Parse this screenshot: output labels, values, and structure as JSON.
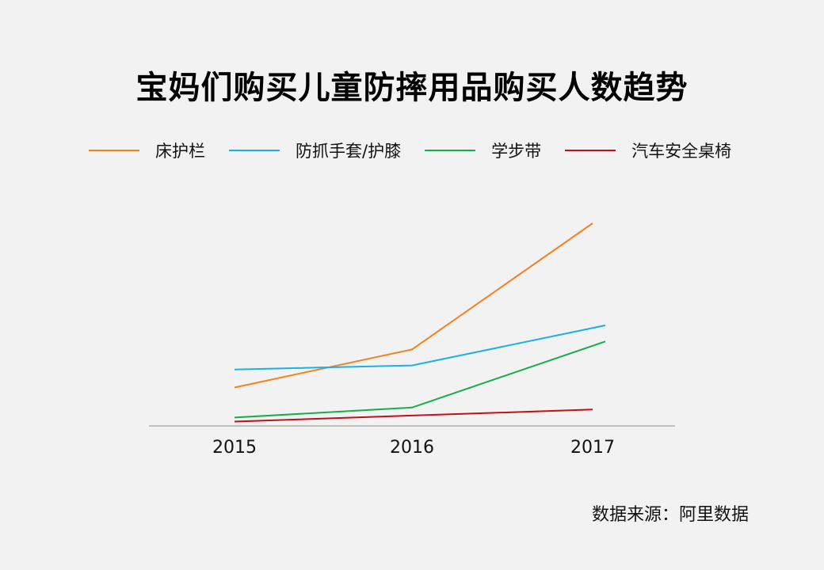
{
  "title": "宝妈们购买儿童防摔用品购买人数趋势",
  "source": "数据来源：阿里数据",
  "chart_data": {
    "type": "line",
    "title": "宝妈们购买儿童防摔用品购买人数趋势",
    "categories": [
      "2015",
      "2016",
      "2017"
    ],
    "series": [
      {
        "name": "床护栏",
        "color": "#f5821f",
        "values": [
          18,
          37,
          100
        ]
      },
      {
        "name": "防抓手套/护膝",
        "color": "#1ab0e8",
        "values": [
          27,
          29,
          49
        ]
      },
      {
        "name": "学步带",
        "color": "#1aab4a",
        "values": [
          3,
          8,
          41
        ]
      },
      {
        "name": "汽车安全桌椅",
        "color": "#c0101a",
        "values": [
          1,
          4,
          7
        ]
      }
    ],
    "ylim": [
      0,
      100
    ],
    "grid": false,
    "legend": "top"
  }
}
